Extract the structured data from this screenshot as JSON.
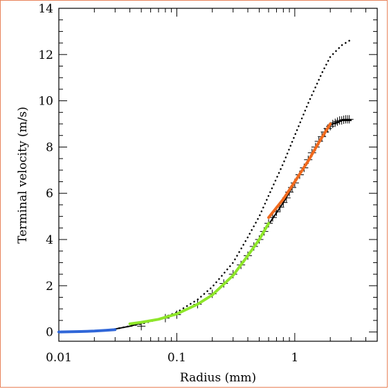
{
  "chart_data": {
    "type": "line",
    "xlabel": "Radius (mm)",
    "ylabel": "Terminal velocity (m/s)",
    "xscale": "log",
    "xlim": [
      0.01,
      5
    ],
    "ylim": [
      -0.4,
      14
    ],
    "xticks": [
      {
        "value": 0.01,
        "label": "0.01"
      },
      {
        "value": 0.1,
        "label": "0.1"
      },
      {
        "value": 1,
        "label": "1"
      }
    ],
    "yticks": [
      {
        "value": 0,
        "label": "0"
      },
      {
        "value": 2,
        "label": "2"
      },
      {
        "value": 4,
        "label": "4"
      },
      {
        "value": 6,
        "label": "6"
      },
      {
        "value": 8,
        "label": "8"
      },
      {
        "value": 10,
        "label": "10"
      },
      {
        "value": 12,
        "label": "12"
      },
      {
        "value": 14,
        "label": "14"
      }
    ],
    "grid": false,
    "series": [
      {
        "style": "solid",
        "color": "#000000",
        "x": [
          0.03,
          0.04,
          0.05,
          0.07,
          0.1,
          0.15,
          0.2,
          0.3,
          0.4,
          0.5,
          0.6,
          0.8,
          1.0,
          1.3,
          1.7,
          2.0,
          2.5,
          3.0
        ],
        "y": [
          0.13,
          0.25,
          0.38,
          0.55,
          0.75,
          1.2,
          1.6,
          2.45,
          3.3,
          4.0,
          4.65,
          5.6,
          6.45,
          7.4,
          8.4,
          8.95,
          9.15,
          9.15
        ]
      },
      {
        "style": "dotted",
        "color": "#000000",
        "x": [
          0.03,
          0.05,
          0.07,
          0.1,
          0.15,
          0.2,
          0.3,
          0.4,
          0.5,
          0.6,
          0.8,
          1.0,
          1.3,
          1.7,
          2.0,
          2.5,
          2.9
        ],
        "y": [
          0.13,
          0.35,
          0.55,
          0.85,
          1.4,
          1.95,
          3.0,
          4.1,
          5.0,
          5.9,
          7.3,
          8.5,
          9.9,
          11.2,
          11.9,
          12.4,
          12.6
        ]
      },
      {
        "style": "plus",
        "color": "#000000",
        "x": [
          0.05,
          0.08,
          0.1,
          0.15,
          0.2,
          0.25,
          0.3,
          0.35,
          0.4,
          0.45,
          0.5,
          0.55,
          0.6,
          0.65,
          0.7,
          0.75,
          0.8,
          0.85,
          0.9,
          0.95,
          1.0,
          1.1,
          1.2,
          1.3,
          1.4,
          1.5,
          1.6,
          1.7,
          1.8,
          1.9,
          2.0,
          2.1,
          2.2,
          2.3,
          2.4,
          2.5,
          2.6,
          2.7,
          2.8,
          2.9
        ],
        "y": [
          0.25,
          0.6,
          0.75,
          1.2,
          1.65,
          2.1,
          2.5,
          2.9,
          3.3,
          3.7,
          4.0,
          4.35,
          4.7,
          4.95,
          5.2,
          5.4,
          5.6,
          5.8,
          6.05,
          6.25,
          6.45,
          6.8,
          7.1,
          7.45,
          7.75,
          8.0,
          8.25,
          8.45,
          8.65,
          8.8,
          8.9,
          9.0,
          9.05,
          9.1,
          9.15,
          9.15,
          9.18,
          9.2,
          9.2,
          9.2
        ]
      },
      {
        "style": "thick",
        "color": "#2f66d8",
        "x": [
          0.01,
          0.015,
          0.02,
          0.025,
          0.03
        ],
        "y": [
          0.0,
          0.02,
          0.04,
          0.07,
          0.1
        ]
      },
      {
        "style": "thick",
        "color": "#8ee62a",
        "x": [
          0.04,
          0.05,
          0.07,
          0.1,
          0.15,
          0.2,
          0.3,
          0.4,
          0.5,
          0.6
        ],
        "y": [
          0.35,
          0.42,
          0.55,
          0.78,
          1.2,
          1.6,
          2.45,
          3.3,
          4.0,
          4.7
        ]
      },
      {
        "style": "thick",
        "color": "#f06a1e",
        "x": [
          0.6,
          0.8,
          1.0,
          1.3,
          1.6,
          2.0
        ],
        "y": [
          4.95,
          5.75,
          6.5,
          7.4,
          8.2,
          9.0
        ]
      }
    ]
  }
}
